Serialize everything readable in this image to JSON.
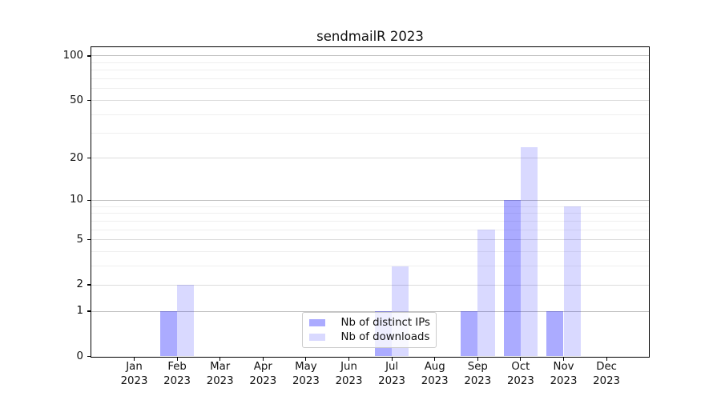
{
  "title": "sendmailR 2023",
  "colors": {
    "bar_distinct_ips": "rgba(0,0,255,0.33)",
    "bar_downloads": "rgba(0,0,255,0.15)",
    "bar_distinct_ips_hex": "#ababff",
    "bar_downloads_hex": "#d9d9ff",
    "gridline_decade": "#bfbfbf",
    "gridline_major": "#dcdcdc",
    "gridline_minor": "#efefef",
    "axis": "#000000"
  },
  "chart_data": {
    "type": "bar",
    "title": "sendmailR 2023",
    "categories": [
      "Jan 2023",
      "Feb 2023",
      "Mar 2023",
      "Apr 2023",
      "May 2023",
      "Jun 2023",
      "Jul 2023",
      "Aug 2023",
      "Sep 2023",
      "Oct 2023",
      "Nov 2023",
      "Dec 2023"
    ],
    "series": [
      {
        "name": "Nb of distinct IPs",
        "values": [
          0,
          1,
          0,
          0,
          0,
          0,
          1,
          0,
          1,
          10,
          1,
          0
        ],
        "color": "rgba(0,0,255,0.33)"
      },
      {
        "name": "Nb of downloads",
        "values": [
          0,
          2,
          0,
          0,
          0,
          0,
          3,
          0,
          6,
          24,
          9,
          0
        ],
        "color": "rgba(0,0,255,0.15)"
      }
    ],
    "xlabel": "",
    "ylabel": "",
    "yscale": "log1p",
    "yticks": [
      0,
      1,
      2,
      5,
      10,
      20,
      50,
      100
    ],
    "ylim": [
      0,
      114.5
    ],
    "grid": "horizontal major + log minor",
    "legend_position": "inside lower-center"
  }
}
